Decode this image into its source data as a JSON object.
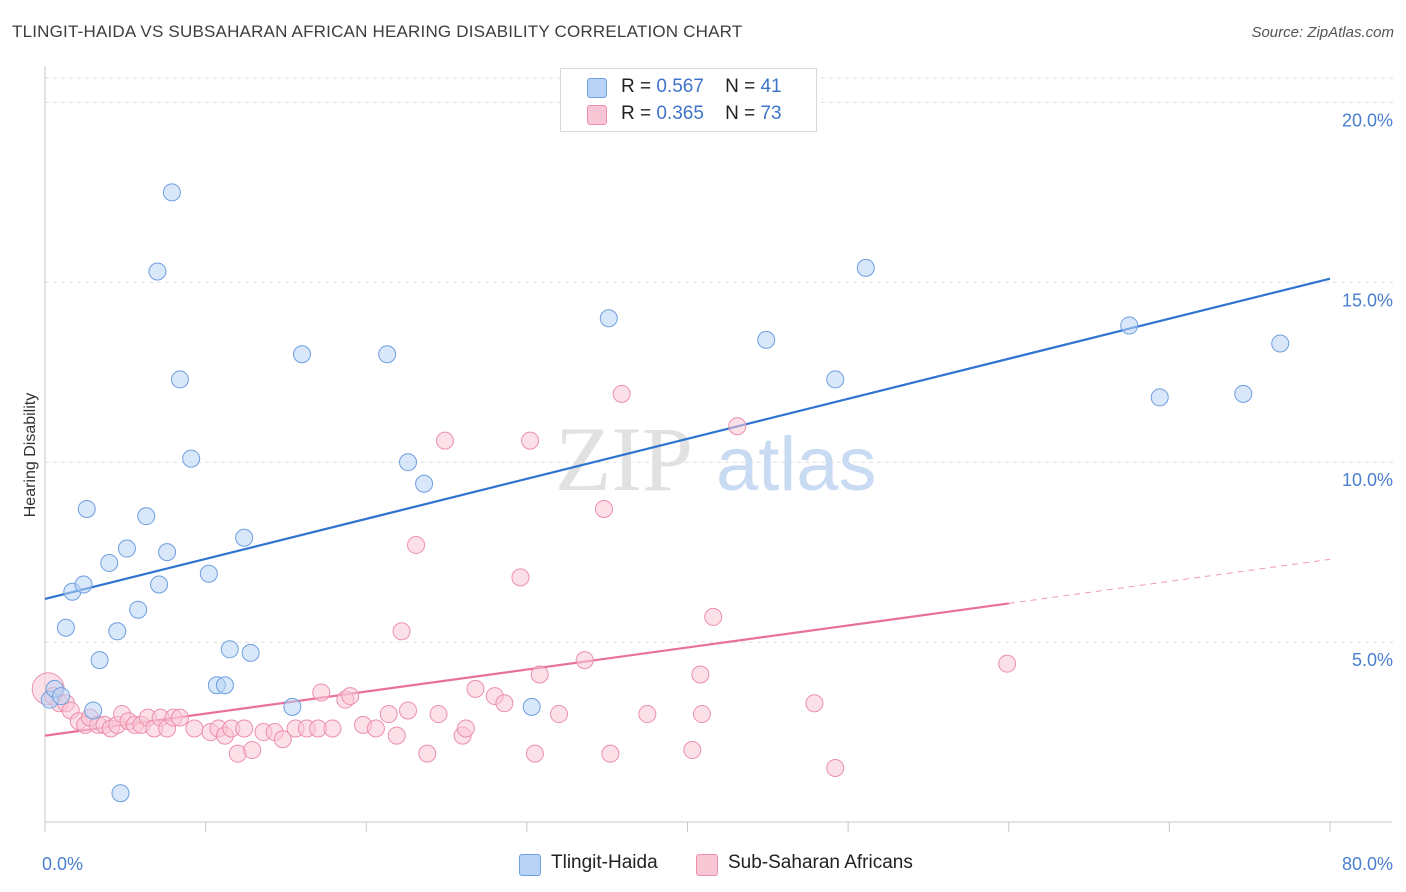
{
  "title": "TLINGIT-HAIDA VS SUBSAHARAN AFRICAN HEARING DISABILITY CORRELATION CHART",
  "source": "Source: ZipAtlas.com",
  "watermark": {
    "zip": "ZIP",
    "atlas": "atlas"
  },
  "legend_top": [
    {
      "r_label": "R =",
      "r_value": "0.567",
      "n_label": "N =",
      "n_value": "41"
    },
    {
      "r_label": "R =",
      "r_value": "0.365",
      "n_label": "N =",
      "n_value": "73"
    }
  ],
  "legend_bottom": [
    "Tlingit-Haida",
    "Sub-Saharan Africans"
  ],
  "colors": {
    "blue_fill": "#b8d3f5",
    "blue_stroke": "#6f9fe0",
    "blue_line": "#2f74d0",
    "pink_fill": "#f9c6d6",
    "pink_stroke": "#ec8fad",
    "pink_line": "#e8719a",
    "grid": "#dddddd",
    "tick_text": "#4a7fd0"
  },
  "chart_data": {
    "type": "scatter",
    "title": "TLINGIT-HAIDA VS SUBSAHARAN AFRICAN HEARING DISABILITY CORRELATION CHART",
    "xlabel": "",
    "ylabel": "Hearing Disability",
    "xlim": [
      0,
      80
    ],
    "ylim": [
      0,
      20.9
    ],
    "x_tick_labels": [
      "0.0%",
      "80.0%"
    ],
    "y_ticks": [
      5,
      10,
      15,
      20
    ],
    "y_tick_labels": [
      "5.0%",
      "10.0%",
      "15.0%",
      "20.0%"
    ],
    "grid": true,
    "series": [
      {
        "name": "Tlingit-Haida",
        "color": "blue",
        "R": 0.567,
        "N": 41,
        "trend": {
          "x0": 0,
          "y0": 6.2,
          "x1": 80,
          "y1": 15.1,
          "dashed_from": null
        },
        "points": [
          {
            "x": 0.3,
            "y": 3.4
          },
          {
            "x": 0.6,
            "y": 3.7
          },
          {
            "x": 1.0,
            "y": 3.5
          },
          {
            "x": 1.3,
            "y": 5.4
          },
          {
            "x": 1.7,
            "y": 6.4
          },
          {
            "x": 2.4,
            "y": 6.6
          },
          {
            "x": 2.6,
            "y": 8.7
          },
          {
            "x": 3.0,
            "y": 3.1
          },
          {
            "x": 3.4,
            "y": 4.5
          },
          {
            "x": 4.0,
            "y": 7.2
          },
          {
            "x": 4.5,
            "y": 5.3
          },
          {
            "x": 5.1,
            "y": 7.6
          },
          {
            "x": 5.8,
            "y": 5.9
          },
          {
            "x": 6.3,
            "y": 8.5
          },
          {
            "x": 7.1,
            "y": 6.6
          },
          {
            "x": 7.6,
            "y": 7.5
          },
          {
            "x": 7.9,
            "y": 17.5
          },
          {
            "x": 8.4,
            "y": 12.3
          },
          {
            "x": 7.0,
            "y": 15.3
          },
          {
            "x": 9.1,
            "y": 10.1
          },
          {
            "x": 10.2,
            "y": 6.9
          },
          {
            "x": 10.7,
            "y": 3.8
          },
          {
            "x": 11.2,
            "y": 3.8
          },
          {
            "x": 11.5,
            "y": 4.8
          },
          {
            "x": 12.4,
            "y": 7.9
          },
          {
            "x": 12.8,
            "y": 4.7
          },
          {
            "x": 15.4,
            "y": 3.2
          },
          {
            "x": 16.0,
            "y": 13.0
          },
          {
            "x": 21.3,
            "y": 13.0
          },
          {
            "x": 22.6,
            "y": 10.0
          },
          {
            "x": 23.6,
            "y": 9.4
          },
          {
            "x": 30.3,
            "y": 3.2
          },
          {
            "x": 35.1,
            "y": 14.0
          },
          {
            "x": 44.9,
            "y": 13.4
          },
          {
            "x": 49.2,
            "y": 12.3
          },
          {
            "x": 51.1,
            "y": 15.4
          },
          {
            "x": 67.5,
            "y": 13.8
          },
          {
            "x": 69.4,
            "y": 11.8
          },
          {
            "x": 74.6,
            "y": 11.9
          },
          {
            "x": 76.9,
            "y": 13.3
          },
          {
            "x": 4.7,
            "y": 0.8
          }
        ]
      },
      {
        "name": "Sub-Saharan Africans",
        "color": "pink",
        "R": 0.365,
        "N": 73,
        "trend": {
          "x0": 0,
          "y0": 2.4,
          "x1": 80,
          "y1": 7.3,
          "dashed_from": 60
        },
        "points": [
          {
            "x": 0.2,
            "y": 3.7
          },
          {
            "x": 0.5,
            "y": 3.5
          },
          {
            "x": 0.9,
            "y": 3.3
          },
          {
            "x": 1.3,
            "y": 3.3
          },
          {
            "x": 1.6,
            "y": 3.1
          },
          {
            "x": 2.1,
            "y": 2.8
          },
          {
            "x": 2.5,
            "y": 2.7
          },
          {
            "x": 2.8,
            "y": 2.9
          },
          {
            "x": 3.3,
            "y": 2.7
          },
          {
            "x": 3.7,
            "y": 2.7
          },
          {
            "x": 4.1,
            "y": 2.6
          },
          {
            "x": 4.5,
            "y": 2.7
          },
          {
            "x": 4.8,
            "y": 3.0
          },
          {
            "x": 5.2,
            "y": 2.8
          },
          {
            "x": 5.6,
            "y": 2.7
          },
          {
            "x": 6.0,
            "y": 2.7
          },
          {
            "x": 6.4,
            "y": 2.9
          },
          {
            "x": 6.8,
            "y": 2.6
          },
          {
            "x": 7.2,
            "y": 2.9
          },
          {
            "x": 7.6,
            "y": 2.6
          },
          {
            "x": 8.0,
            "y": 2.9
          },
          {
            "x": 8.4,
            "y": 2.9
          },
          {
            "x": 9.3,
            "y": 2.6
          },
          {
            "x": 10.3,
            "y": 2.5
          },
          {
            "x": 10.8,
            "y": 2.6
          },
          {
            "x": 11.2,
            "y": 2.4
          },
          {
            "x": 11.6,
            "y": 2.6
          },
          {
            "x": 12.0,
            "y": 1.9
          },
          {
            "x": 12.4,
            "y": 2.6
          },
          {
            "x": 12.9,
            "y": 2.0
          },
          {
            "x": 13.6,
            "y": 2.5
          },
          {
            "x": 14.3,
            "y": 2.5
          },
          {
            "x": 14.8,
            "y": 2.3
          },
          {
            "x": 15.6,
            "y": 2.6
          },
          {
            "x": 16.3,
            "y": 2.6
          },
          {
            "x": 17.0,
            "y": 2.6
          },
          {
            "x": 17.9,
            "y": 2.6
          },
          {
            "x": 18.7,
            "y": 3.4
          },
          {
            "x": 17.2,
            "y": 3.6
          },
          {
            "x": 19.0,
            "y": 3.5
          },
          {
            "x": 19.8,
            "y": 2.7
          },
          {
            "x": 20.6,
            "y": 2.6
          },
          {
            "x": 21.4,
            "y": 3.0
          },
          {
            "x": 21.9,
            "y": 2.4
          },
          {
            "x": 22.6,
            "y": 3.1
          },
          {
            "x": 23.8,
            "y": 1.9
          },
          {
            "x": 24.5,
            "y": 3.0
          },
          {
            "x": 26.0,
            "y": 2.4
          },
          {
            "x": 26.2,
            "y": 2.6
          },
          {
            "x": 26.8,
            "y": 3.7
          },
          {
            "x": 28.0,
            "y": 3.5
          },
          {
            "x": 28.6,
            "y": 3.3
          },
          {
            "x": 30.8,
            "y": 4.1
          },
          {
            "x": 30.5,
            "y": 1.9
          },
          {
            "x": 32.0,
            "y": 3.0
          },
          {
            "x": 33.6,
            "y": 4.5
          },
          {
            "x": 35.2,
            "y": 1.9
          },
          {
            "x": 35.9,
            "y": 11.9
          },
          {
            "x": 34.8,
            "y": 8.7
          },
          {
            "x": 37.5,
            "y": 3.0
          },
          {
            "x": 40.3,
            "y": 2.0
          },
          {
            "x": 40.8,
            "y": 4.1
          },
          {
            "x": 41.6,
            "y": 5.7
          },
          {
            "x": 43.1,
            "y": 11.0
          },
          {
            "x": 47.9,
            "y": 3.3
          },
          {
            "x": 49.2,
            "y": 1.5
          },
          {
            "x": 59.9,
            "y": 4.4
          },
          {
            "x": 22.2,
            "y": 5.3
          },
          {
            "x": 23.1,
            "y": 7.7
          },
          {
            "x": 24.9,
            "y": 10.6
          },
          {
            "x": 30.2,
            "y": 10.6
          },
          {
            "x": 29.6,
            "y": 6.8
          },
          {
            "x": 40.9,
            "y": 3.0
          }
        ]
      }
    ]
  }
}
